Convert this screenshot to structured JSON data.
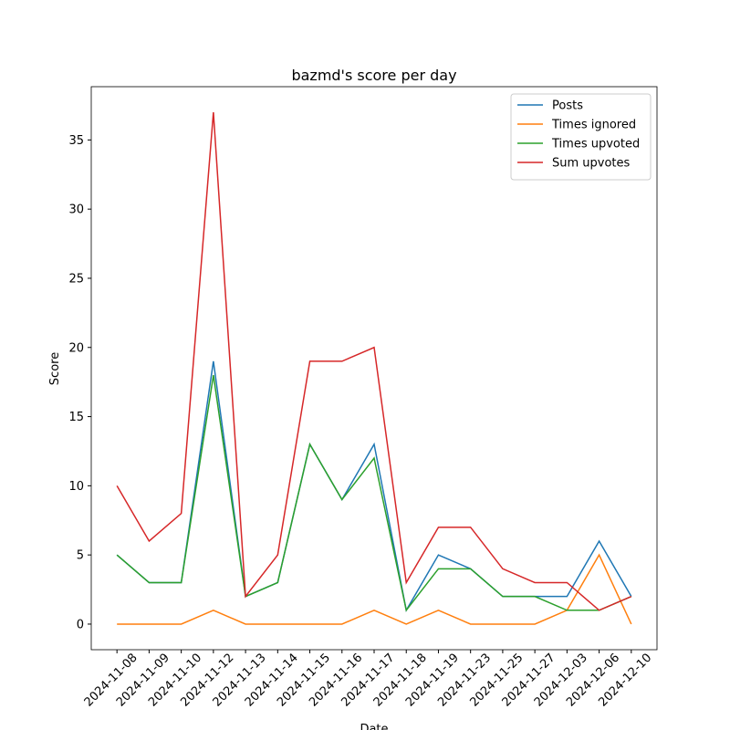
{
  "chart_data": {
    "type": "line",
    "title": "bazmd's score per day",
    "xlabel": "Date",
    "ylabel": "Score",
    "categories": [
      "2024-11-08",
      "2024-11-09",
      "2024-11-10",
      "2024-11-12",
      "2024-11-13",
      "2024-11-14",
      "2024-11-15",
      "2024-11-16",
      "2024-11-17",
      "2024-11-18",
      "2024-11-19",
      "2024-11-23",
      "2024-11-25",
      "2024-11-27",
      "2024-12-03",
      "2024-12-06",
      "2024-12-10"
    ],
    "series": [
      {
        "name": "Posts",
        "color": "#1f77b4",
        "values": [
          5,
          3,
          3,
          19,
          2,
          3,
          13,
          9,
          13,
          1,
          5,
          4,
          2,
          2,
          2,
          6,
          2
        ]
      },
      {
        "name": "Times ignored",
        "color": "#ff7f0e",
        "values": [
          0,
          0,
          0,
          1,
          0,
          0,
          0,
          0,
          1,
          0,
          1,
          0,
          0,
          0,
          1,
          5,
          0
        ]
      },
      {
        "name": "Times upvoted",
        "color": "#2ca02c",
        "values": [
          5,
          3,
          3,
          18,
          2,
          3,
          13,
          9,
          12,
          1,
          4,
          4,
          2,
          2,
          1,
          1,
          2
        ]
      },
      {
        "name": "Sum upvotes",
        "color": "#d62728",
        "values": [
          10,
          6,
          8,
          37,
          2,
          5,
          19,
          19,
          20,
          3,
          7,
          7,
          4,
          3,
          3,
          1,
          2
        ]
      }
    ],
    "ylim": [
      -1.85,
      38.85
    ],
    "yticks": [
      0,
      5,
      10,
      15,
      20,
      25,
      30,
      35
    ],
    "legend": "upper right"
  }
}
